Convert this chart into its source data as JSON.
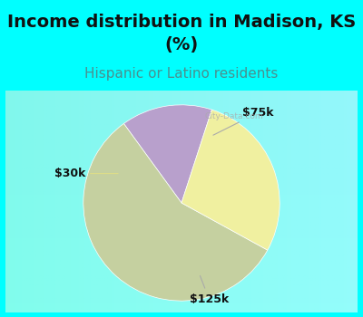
{
  "title_line1": "Income distribution in Madison, KS",
  "title_line2": "(%)",
  "subtitle": "Hispanic or Latino residents",
  "slices": [
    {
      "label": "$75k",
      "value": 15,
      "color": "#b8a0cc"
    },
    {
      "label": "$125k",
      "value": 57,
      "color": "#c5d0a0"
    },
    {
      "label": "$30k",
      "value": 28,
      "color": "#f0f0a0"
    }
  ],
  "title_fontsize": 14,
  "subtitle_fontsize": 11,
  "title_color": "#111111",
  "subtitle_color": "#4a9090",
  "header_bg": "#00ffff",
  "chart_bg": "#e0f5ee",
  "label_fontsize": 9,
  "watermark": "City-Data.com",
  "start_angle": 72
}
